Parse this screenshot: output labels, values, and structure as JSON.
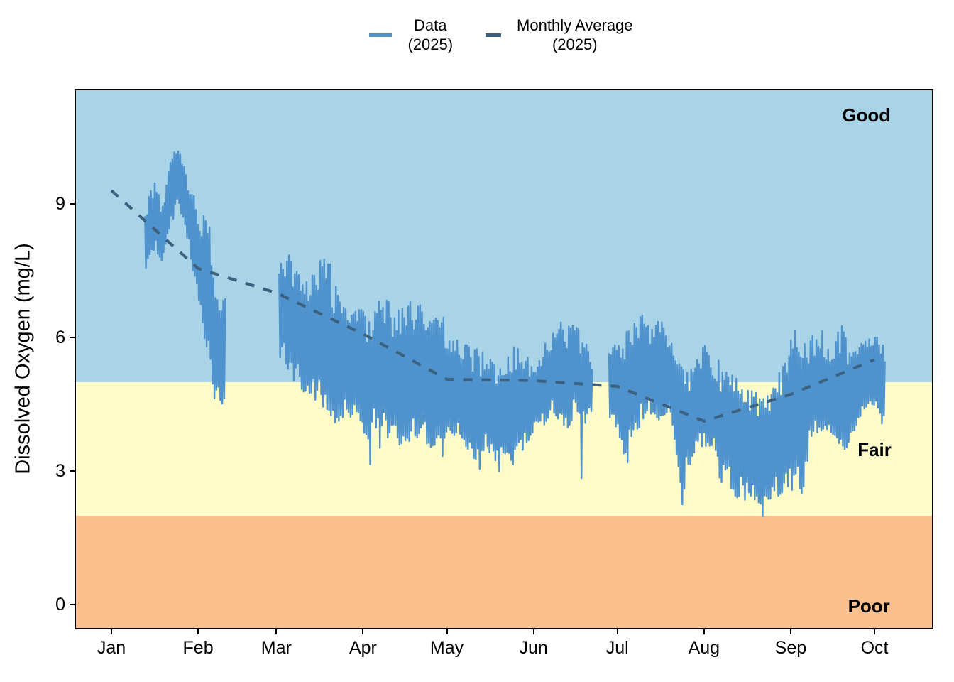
{
  "legend": {
    "items": [
      {
        "line1": "Data",
        "line2": "(2025)",
        "color": "#4E92CE",
        "style": "solid"
      },
      {
        "line1": "Monthly Average",
        "line2": "(2025)",
        "color": "#3B617E",
        "style": "dashed"
      }
    ]
  },
  "chart_data": {
    "type": "line",
    "title": "",
    "xlabel": "",
    "ylabel": "Dissolved Oxygen (mg/L)",
    "unit": "mg/L",
    "year": "2025",
    "ylim": [
      -0.55,
      11.55
    ],
    "yticks": [
      0,
      3,
      6,
      9
    ],
    "x_domain_days": [
      -11.7,
      294.6
    ],
    "x_ticks": [
      {
        "label": "Jan",
        "day": 1
      },
      {
        "label": "Feb",
        "day": 32
      },
      {
        "label": "Mar",
        "day": 60
      },
      {
        "label": "Apr",
        "day": 91
      },
      {
        "label": "May",
        "day": 121
      },
      {
        "label": "Jun",
        "day": 152
      },
      {
        "label": "Jul",
        "day": 182
      },
      {
        "label": "Aug",
        "day": 213
      },
      {
        "label": "Sep",
        "day": 244
      },
      {
        "label": "Oct",
        "day": 274
      }
    ],
    "grid": "off",
    "legend_position": "top-center",
    "bands": [
      {
        "label": "Good",
        "from": 5,
        "to": 11.55,
        "color": "#A9D3E7"
      },
      {
        "label": "Fair",
        "from": 2,
        "to": 5,
        "color": "#FDFCC8"
      },
      {
        "label": "Poor",
        "from": -0.55,
        "to": 2,
        "color": "#FAC08D"
      }
    ],
    "annotations": [
      {
        "text": "Good",
        "day": 271,
        "value": 10.98
      },
      {
        "text": "Fair",
        "day": 274,
        "value": 3.46
      },
      {
        "text": "Poor",
        "day": 272,
        "value": -0.05
      }
    ],
    "series": [
      {
        "name": "Data (2025)",
        "color": "#4E92CE",
        "type": "sub-daily measurements (shown as min-max envelope per day-of-year)",
        "segments": [
          [
            [
              13,
              7.4,
              8.9
            ],
            [
              15,
              7.8,
              9.35
            ],
            [
              17,
              7.9,
              9.6
            ],
            [
              19,
              7.6,
              8.85
            ],
            [
              21,
              8.3,
              9.7
            ],
            [
              23,
              8.6,
              10.2
            ],
            [
              25,
              9.0,
              10.25
            ],
            [
              27,
              8.5,
              9.9
            ],
            [
              29,
              7.9,
              9.35
            ],
            [
              31,
              7.1,
              9.2
            ],
            [
              33,
              6.6,
              8.85
            ],
            [
              35,
              5.6,
              8.8
            ],
            [
              37,
              4.9,
              8.4
            ],
            [
              38,
              4.5,
              7.2
            ],
            [
              39,
              4.35,
              6.9
            ],
            [
              39.8,
              4.3,
              6.85
            ],
            [
              40.2,
              3.7,
              6.8
            ],
            [
              40.7,
              4.35,
              6.9
            ],
            [
              41.5,
              4.4,
              7.1
            ],
            [
              42,
              4.45,
              6.9
            ]
          ],
          [
            [
              61,
              5.5,
              7.8
            ],
            [
              64,
              5.2,
              8.0
            ],
            [
              67,
              4.9,
              7.6
            ],
            [
              70,
              4.7,
              7.3
            ],
            [
              73,
              4.6,
              7.5
            ],
            [
              76,
              4.4,
              7.9
            ],
            [
              79,
              4.2,
              7.8
            ],
            [
              82,
              3.9,
              7.1
            ],
            [
              83.6,
              4.2,
              6.9
            ],
            [
              84.1,
              3.74,
              6.85
            ],
            [
              84.6,
              4.3,
              6.8
            ],
            [
              86,
              4.1,
              6.6
            ],
            [
              89,
              4.3,
              6.7
            ],
            [
              91,
              3.8,
              6.7
            ],
            [
              93.5,
              3.0,
              6.6
            ],
            [
              94.2,
              3.9,
              6.65
            ],
            [
              96,
              3.9,
              6.9
            ],
            [
              97.6,
              3.05,
              7.0
            ],
            [
              98.3,
              3.8,
              6.95
            ],
            [
              101,
              3.6,
              6.9
            ],
            [
              104,
              3.4,
              6.8
            ],
            [
              105.6,
              3.0,
              6.9
            ],
            [
              106.3,
              3.7,
              6.9
            ],
            [
              109,
              3.5,
              6.9
            ],
            [
              112,
              3.9,
              6.8
            ],
            [
              115,
              3.3,
              6.6
            ],
            [
              118,
              3.6,
              6.5
            ],
            [
              119.6,
              3.22,
              6.6
            ],
            [
              120.3,
              3.8,
              6.4
            ],
            [
              122,
              3.9,
              6.1
            ],
            [
              125,
              3.6,
              6.0
            ],
            [
              128,
              3.5,
              5.9
            ],
            [
              131,
              3.2,
              5.9
            ],
            [
              133.6,
              2.85,
              5.8
            ],
            [
              134.3,
              3.4,
              5.75
            ],
            [
              137,
              3.3,
              5.7
            ],
            [
              139.6,
              2.78,
              5.6
            ],
            [
              140.3,
              3.3,
              5.6
            ],
            [
              143,
              3.3,
              5.7
            ],
            [
              144.6,
              2.75,
              5.85
            ],
            [
              145.3,
              3.4,
              5.9
            ],
            [
              148,
              3.4,
              5.8
            ],
            [
              151,
              3.6,
              5.5
            ],
            [
              153,
              4.1,
              5.3
            ],
            [
              156,
              4.0,
              5.9
            ],
            [
              159,
              4.3,
              6.2
            ],
            [
              161.6,
              4.0,
              6.3
            ],
            [
              162.1,
              4.1,
              7.0
            ],
            [
              162.6,
              4.0,
              6.3
            ],
            [
              164,
              3.9,
              6.3
            ],
            [
              167,
              4.2,
              6.4
            ],
            [
              168.6,
              4.0,
              6.2
            ],
            [
              169.1,
              2.55,
              6.0
            ],
            [
              169.7,
              4.1,
              5.95
            ],
            [
              171,
              4.0,
              5.9
            ],
            [
              173,
              4.3,
              5.6
            ]
          ],
          [
            [
              179,
              4.2,
              5.7
            ],
            [
              182,
              3.9,
              6.0
            ],
            [
              184,
              3.4,
              6.2
            ],
            [
              185.5,
              3.0,
              6.3
            ],
            [
              186.2,
              3.6,
              6.3
            ],
            [
              188,
              3.8,
              6.4
            ],
            [
              191,
              4.0,
              6.6
            ],
            [
              194,
              4.2,
              6.2
            ],
            [
              197,
              4.1,
              6.65
            ],
            [
              200,
              4.3,
              6.2
            ],
            [
              202,
              3.8,
              5.8
            ],
            [
              204,
              2.8,
              5.5
            ],
            [
              205.4,
              1.72,
              5.4
            ],
            [
              206.2,
              2.8,
              5.35
            ],
            [
              208,
              3.0,
              5.3
            ],
            [
              210,
              3.4,
              5.5
            ],
            [
              213,
              3.4,
              5.9
            ],
            [
              216,
              3.3,
              5.8
            ],
            [
              219,
              2.7,
              5.5
            ],
            [
              222,
              2.6,
              5.3
            ],
            [
              225,
              2.3,
              5.15
            ],
            [
              228,
              2.3,
              4.9
            ],
            [
              231,
              2.25,
              5.0
            ],
            [
              233.6,
              2.2,
              4.9
            ],
            [
              234.1,
              1.18,
              4.85
            ],
            [
              234.7,
              2.3,
              4.9
            ],
            [
              237,
              2.3,
              5.1
            ],
            [
              240,
              2.4,
              5.3
            ],
            [
              243,
              2.6,
              5.6
            ],
            [
              244.6,
              2.45,
              6.4
            ],
            [
              246,
              2.6,
              6.2
            ],
            [
              248,
              2.3,
              5.9
            ],
            [
              251,
              3.5,
              6.1
            ],
            [
              254,
              3.8,
              6.4
            ],
            [
              257,
              3.9,
              6.0
            ],
            [
              260,
              3.7,
              6.1
            ],
            [
              262.5,
              3.35,
              6.45
            ],
            [
              264,
              3.3,
              6.0
            ],
            [
              266,
              3.5,
              5.8
            ],
            [
              269,
              4.2,
              5.9
            ],
            [
              272,
              4.5,
              6.0
            ],
            [
              275,
              4.4,
              6.1
            ],
            [
              277,
              3.95,
              5.9
            ],
            [
              278,
              4.6,
              5.7
            ]
          ]
        ]
      },
      {
        "name": "Monthly Average (2025)",
        "color": "#3B617E",
        "type": "dashed monthly-average line (points at month starts)",
        "points": [
          [
            1,
            9.3
          ],
          [
            32,
            7.55
          ],
          [
            60,
            7.0
          ],
          [
            91,
            6.08
          ],
          [
            121,
            5.06
          ],
          [
            152,
            5.03
          ],
          [
            182,
            4.9
          ],
          [
            213,
            4.12
          ],
          [
            244,
            4.72
          ],
          [
            274,
            5.5
          ]
        ]
      }
    ]
  }
}
